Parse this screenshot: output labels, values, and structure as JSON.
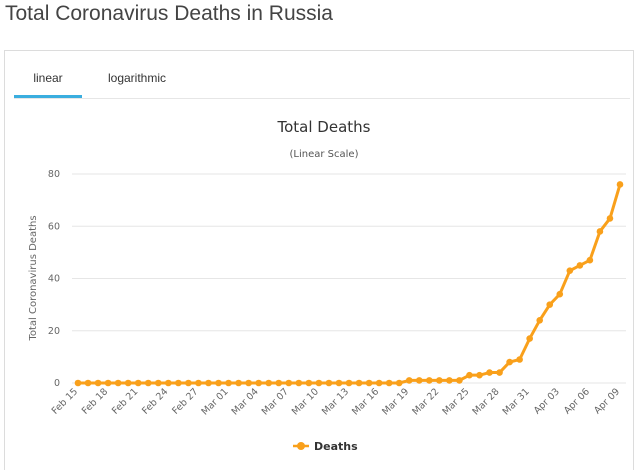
{
  "page": {
    "title": "Total Coronavirus Deaths in Russia"
  },
  "tabs": [
    {
      "label": "linear",
      "active": true
    },
    {
      "label": "logarithmic",
      "active": false
    }
  ],
  "colors": {
    "series": "#f9a01b",
    "tab_active": "#3aaedf",
    "grid": "#e6e6e6"
  },
  "chart_data": {
    "type": "line",
    "title": "Total Deaths",
    "subtitle": "(Linear Scale)",
    "xlabel": "",
    "ylabel": "Total Coronavirus Deaths",
    "ylim": [
      0,
      80
    ],
    "yticks": [
      0,
      20,
      40,
      60,
      80
    ],
    "grid": true,
    "legend_position": "bottom-center",
    "x": [
      "Feb 15",
      "Feb 16",
      "Feb 17",
      "Feb 18",
      "Feb 19",
      "Feb 20",
      "Feb 21",
      "Feb 22",
      "Feb 23",
      "Feb 24",
      "Feb 25",
      "Feb 26",
      "Feb 27",
      "Feb 28",
      "Feb 29",
      "Mar 01",
      "Mar 02",
      "Mar 03",
      "Mar 04",
      "Mar 05",
      "Mar 06",
      "Mar 07",
      "Mar 08",
      "Mar 09",
      "Mar 10",
      "Mar 11",
      "Mar 12",
      "Mar 13",
      "Mar 14",
      "Mar 15",
      "Mar 16",
      "Mar 17",
      "Mar 18",
      "Mar 19",
      "Mar 20",
      "Mar 21",
      "Mar 22",
      "Mar 23",
      "Mar 24",
      "Mar 25",
      "Mar 26",
      "Mar 27",
      "Mar 28",
      "Mar 29",
      "Mar 30",
      "Mar 31",
      "Apr 01",
      "Apr 02",
      "Apr 03",
      "Apr 04",
      "Apr 05",
      "Apr 06",
      "Apr 07",
      "Apr 08",
      "Apr 09"
    ],
    "xtick_labels": [
      "Feb 15",
      "Feb 18",
      "Feb 21",
      "Feb 24",
      "Feb 27",
      "Mar 01",
      "Mar 04",
      "Mar 07",
      "Mar 10",
      "Mar 13",
      "Mar 16",
      "Mar 19",
      "Mar 22",
      "Mar 25",
      "Mar 28",
      "Mar 31",
      "Apr 03",
      "Apr 06",
      "Apr 09"
    ],
    "series": [
      {
        "name": "Deaths",
        "color": "#f9a01b",
        "values": [
          0,
          0,
          0,
          0,
          0,
          0,
          0,
          0,
          0,
          0,
          0,
          0,
          0,
          0,
          0,
          0,
          0,
          0,
          0,
          0,
          0,
          0,
          0,
          0,
          0,
          0,
          0,
          0,
          0,
          0,
          0,
          0,
          0,
          1,
          1,
          1,
          1,
          1,
          1,
          3,
          3,
          4,
          4,
          8,
          9,
          17,
          24,
          30,
          34,
          43,
          45,
          47,
          58,
          63,
          76
        ]
      }
    ]
  }
}
